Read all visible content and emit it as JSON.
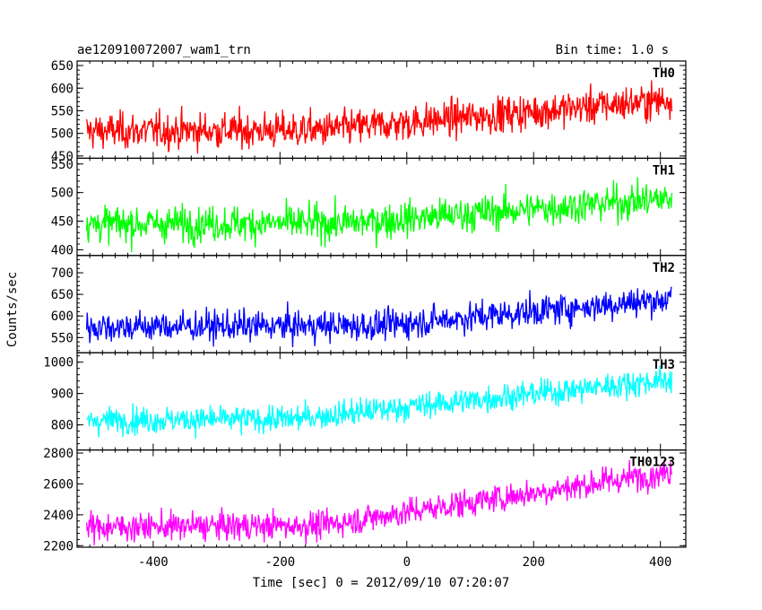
{
  "header": {
    "title": "ae120910072007_wam1_trn",
    "bin_time": "Bin time: 1.0 s"
  },
  "chart_data": {
    "type": "line",
    "title": "ae120910072007_wam1_trn",
    "xlabel": "Time [sec] 0 = 2012/09/10 07:20:07",
    "ylabel": "Counts/sec",
    "xlim": [
      -520,
      440
    ],
    "x_ticks": [
      -400,
      -200,
      0,
      200,
      400
    ],
    "x_start": -505,
    "x_end": 418,
    "grid": false,
    "panels": [
      {
        "name": "TH0",
        "color": "#ff0000",
        "ylim": [
          445,
          660
        ],
        "y_ticks": [
          450,
          500,
          550,
          600,
          650
        ],
        "start_mean": 505,
        "end_mean": 575,
        "noise": 28,
        "knee": 0.4
      },
      {
        "name": "TH1",
        "color": "#00ff00",
        "ylim": [
          390,
          560
        ],
        "y_ticks": [
          400,
          450,
          500,
          550
        ],
        "start_mean": 445,
        "end_mean": 490,
        "noise": 22,
        "knee": 0.45
      },
      {
        "name": "TH2",
        "color": "#0000ff",
        "ylim": [
          515,
          740
        ],
        "y_ticks": [
          550,
          600,
          650,
          700
        ],
        "start_mean": 575,
        "end_mean": 640,
        "noise": 25,
        "knee": 0.5
      },
      {
        "name": "TH3",
        "color": "#00ffff",
        "ylim": [
          720,
          1030
        ],
        "y_ticks": [
          800,
          900,
          1000
        ],
        "start_mean": 815,
        "end_mean": 945,
        "noise": 30,
        "knee": 0.35
      },
      {
        "name": "TH0123",
        "color": "#ff00ff",
        "ylim": [
          2190,
          2820
        ],
        "y_ticks": [
          2200,
          2400,
          2600,
          2800
        ],
        "start_mean": 2320,
        "end_mean": 2680,
        "noise": 65,
        "knee": 0.4
      }
    ]
  }
}
